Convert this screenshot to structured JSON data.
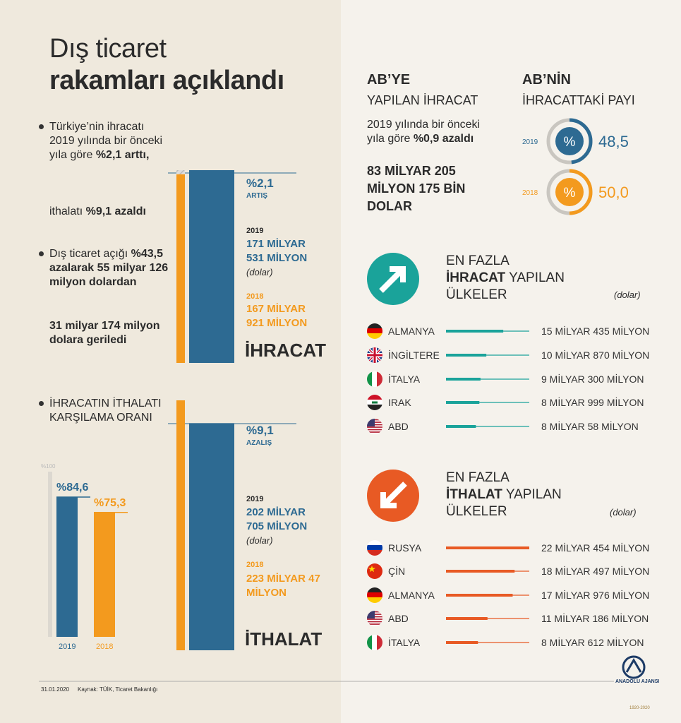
{
  "title": [
    "Dış ticaret",
    "rakamları açıklandı"
  ],
  "summary": [
    {
      "bullet": true,
      "parts": [
        {
          "text": "Türkiye’nin ihracatı 2019 yılında bir önceki yıla göre "
        },
        {
          "text": "%2,1 arttı,",
          "bold": true
        }
      ]
    },
    {
      "bullet": false,
      "parts": [
        {
          "text": "ithalatı "
        },
        {
          "text": "%9,1 azaldı",
          "bold": true
        }
      ]
    },
    {
      "bullet": true,
      "parts": [
        {
          "text": "Dış ticaret açığı "
        },
        {
          "text": "%43,5 azalarak 55 milyar 126 milyon dolardan",
          "bold": true
        }
      ]
    },
    {
      "bullet": false,
      "parts": [
        {
          "text": "31 milyar 174 milyon dolara geriledi",
          "bold": true
        }
      ]
    }
  ],
  "exports": {
    "label": "İHRACAT",
    "change": "%2,1",
    "change_label": "ARTIŞ",
    "series": [
      {
        "name": "2019",
        "color": "#2d6a92",
        "value": 171.531,
        "value_label": "171 MİLYAR 531 MİLYON",
        "unit": "(dolar)"
      },
      {
        "name": "2018",
        "color": "#f39a1e",
        "value": 167.921,
        "value_label": "167 MİLYAR 921 MİLYON"
      }
    ]
  },
  "imports": {
    "label": "İTHALAT",
    "change": "%9,1",
    "change_label": "AZALIŞ",
    "series": [
      {
        "name": "2019",
        "color": "#2d6a92",
        "value": 202.705,
        "value_label": "202 MİLYAR 705 MİLYON",
        "unit": "(dolar)"
      },
      {
        "name": "2018",
        "color": "#f39a1e",
        "value": 223.047,
        "value_label": "223 MİLYAR 47 MİLYON"
      }
    ]
  },
  "coverage": {
    "title": "İHRACATIN İTHALATI KARŞILAMA ORANI",
    "ylim": [
      0,
      100
    ],
    "reference": {
      "value": 100,
      "label": "%100"
    },
    "series": [
      {
        "name": "2019",
        "color": "#2d6a92",
        "value": 84.6,
        "value_label": "%84,6"
      },
      {
        "name": "2018",
        "color": "#f39a1e",
        "value": 75.3,
        "value_label": "%75,3"
      }
    ]
  },
  "eu_exports": {
    "title": [
      "AB’YE",
      "YAPILAN İHRACAT"
    ],
    "parts": [
      {
        "text": "2019 yılında bir önceki yıla göre "
      },
      {
        "text": "%0,9 azaldı",
        "bold": true
      }
    ],
    "total": "83 MİLYAR 205 MİLYON 175 BİN DOLAR"
  },
  "eu_share": {
    "title": [
      "AB’NİN",
      "İHRACATTAKİ PAYI"
    ],
    "symbol": "%",
    "series": [
      {
        "name": "2019",
        "color": "#2d6a92",
        "value": 48.5,
        "value_label": "48,5"
      },
      {
        "name": "2018",
        "color": "#f39a1e",
        "value": 50.0,
        "value_label": "50,0"
      }
    ]
  },
  "top_exports": {
    "lines": [
      [
        {
          "text": "EN FAZLA"
        }
      ],
      [
        {
          "text": "İHRACAT",
          "bold": true
        },
        {
          "text": "YAPILAN"
        }
      ],
      [
        {
          "text": "ÜLKELER"
        }
      ]
    ],
    "unit": "(dolar)",
    "color": "#1aa39a",
    "xlim": [
      0,
      22.454
    ],
    "categories": [
      "ALMANYA",
      "İNGİLTERE",
      "İTALYA",
      "IRAK",
      "ABD"
    ],
    "values": [
      15.435,
      10.87,
      9.3,
      8.999,
      8.058
    ],
    "value_labels": [
      "15 MİLYAR 435 MİLYON",
      "10 MİLYAR 870 MİLYON",
      "9 MİLYAR 300 MİLYON",
      "8 MİLYAR 999 MİLYON",
      "8 MİLYAR 58 MİLYON"
    ]
  },
  "top_imports": {
    "lines": [
      [
        {
          "text": "EN FAZLA"
        }
      ],
      [
        {
          "text": "İTHALAT",
          "bold": true
        },
        {
          "text": "YAPILAN"
        }
      ],
      [
        {
          "text": "ÜLKELER"
        }
      ]
    ],
    "unit": "(dolar)",
    "color": "#e85a24",
    "xlim": [
      0,
      22.454
    ],
    "categories": [
      "RUSYA",
      "ÇİN",
      "ALMANYA",
      "ABD",
      "İTALYA"
    ],
    "values": [
      22.454,
      18.497,
      17.976,
      11.186,
      8.612
    ],
    "value_labels": [
      "22 MİLYAR 454 MİLYON",
      "18 MİLYAR 497 MİLYON",
      "17 MİLYAR 976 MİLYON",
      "11 MİLYAR 186 MİLYON",
      "8 MİLYAR 612 MİLYON"
    ]
  },
  "footer": {
    "date": "31.01.2020",
    "source": "Kaynak: TÜİK, Ticaret Bakanlığı",
    "logo": "ANADOLU AJANSI",
    "logo_years": "1920-2020"
  }
}
